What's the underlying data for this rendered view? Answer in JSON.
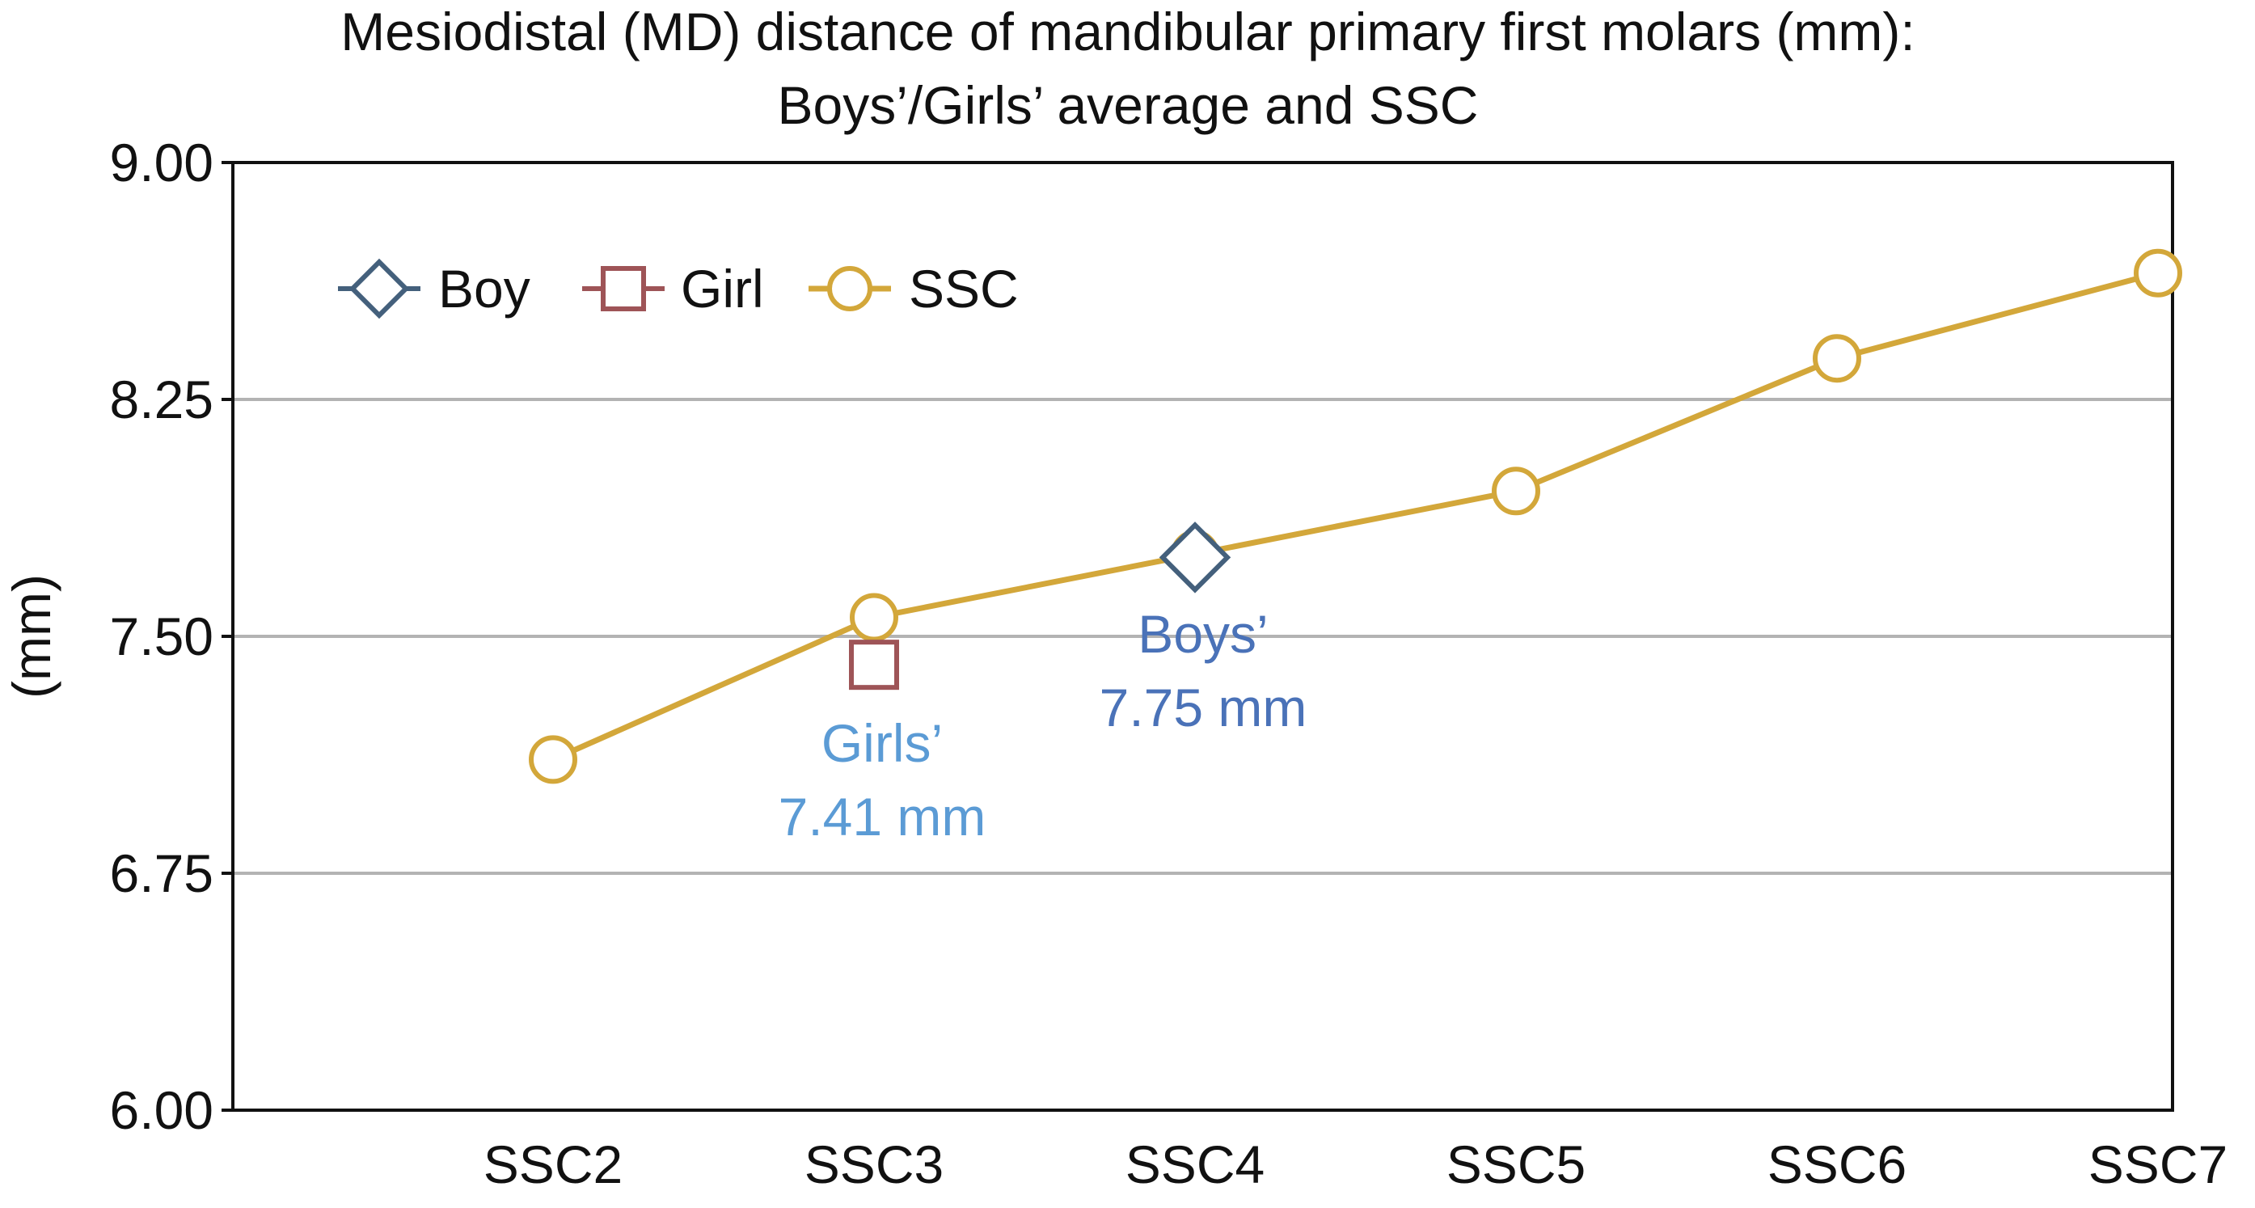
{
  "chart_data": {
    "type": "line",
    "title": "Mesiodistal (MD) distance of mandibular primary first molars (mm):",
    "subtitle": "Boys’/Girls’ average and SSC",
    "xlabel": "",
    "ylabel": "(mm)",
    "categories": [
      "SSC2",
      "SSC3",
      "SSC4",
      "SSC5",
      "SSC6",
      "SSC7"
    ],
    "ylim": [
      6.0,
      9.0
    ],
    "yticks": [
      "9.00",
      "8.25",
      "7.50",
      "6.75",
      "6.00"
    ],
    "ytick_values": [
      9.0,
      8.25,
      7.5,
      6.75,
      6.0
    ],
    "grid": true,
    "legend_position": "top-left",
    "series": [
      {
        "name": "SSC",
        "type": "line",
        "marker": "circle",
        "color": "#d3a73a",
        "values": [
          7.11,
          7.56,
          7.76,
          7.96,
          8.38,
          8.65
        ]
      },
      {
        "name": "Boy",
        "type": "scatter",
        "marker": "diamond",
        "color": "#44607c",
        "points": [
          {
            "category": "SSC4",
            "value": 7.75
          }
        ]
      },
      {
        "name": "Girl",
        "type": "scatter",
        "marker": "square",
        "color": "#9e5457",
        "points": [
          {
            "category": "SSC3",
            "value": 7.41
          }
        ]
      }
    ],
    "annotations": [
      {
        "label": "Boys’",
        "value_text": "7.75 mm",
        "category": "SSC4",
        "color": "#4a72b8"
      },
      {
        "label": "Girls’",
        "value_text": "7.41 mm",
        "category": "SSC3",
        "color": "#5b9bd5"
      }
    ]
  }
}
